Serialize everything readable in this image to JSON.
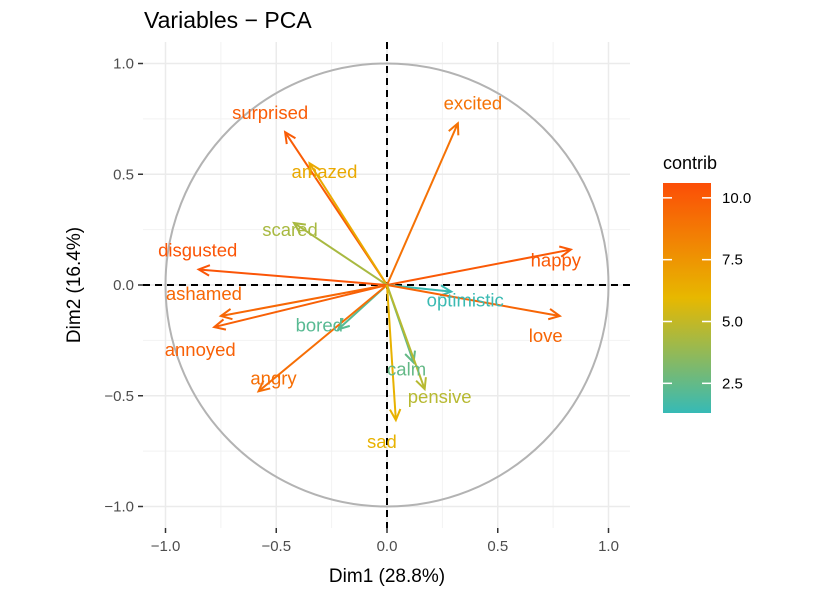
{
  "chart_data": {
    "type": "scatter",
    "title": "Variables − PCA",
    "xlabel": "Dim1 (28.8%)",
    "ylabel": "Dim2 (16.4%)",
    "xlim": [
      -1.1,
      1.1
    ],
    "ylim": [
      -1.1,
      1.1
    ],
    "xticks": [
      -1.0,
      -0.5,
      0.0,
      0.5,
      1.0
    ],
    "yticks": [
      -1.0,
      -0.5,
      0.0,
      0.5,
      1.0
    ],
    "xtick_labels": [
      "−1.0",
      "−0.5",
      "0.0",
      "0.5",
      "1.0"
    ],
    "ytick_labels": [
      "−1.0",
      "−0.5",
      "0.0",
      "0.5",
      "1.0"
    ],
    "grid": true,
    "unit_circle": true,
    "legend": {
      "title": "contrib",
      "position": "right",
      "range": [
        1.3,
        10.6
      ],
      "ticks": [
        2.5,
        5.0,
        7.5,
        10.0
      ],
      "tick_labels": [
        "2.5",
        "5.0",
        "7.5",
        "10.0"
      ],
      "colors": [
        "#36BAB6",
        "#E7B800",
        "#FC4E07"
      ]
    },
    "variables": [
      {
        "name": "excited",
        "x": 0.32,
        "y": 0.73,
        "contrib": 9.0
      },
      {
        "name": "surprised",
        "x": -0.46,
        "y": 0.69,
        "contrib": 10.0
      },
      {
        "name": "amazed",
        "x": -0.35,
        "y": 0.55,
        "contrib": 6.6
      },
      {
        "name": "scared",
        "x": -0.42,
        "y": 0.28,
        "contrib": 4.3
      },
      {
        "name": "disgusted",
        "x": -0.85,
        "y": 0.07,
        "contrib": 10.3
      },
      {
        "name": "happy",
        "x": 0.83,
        "y": 0.16,
        "contrib": 10.1
      },
      {
        "name": "ashamed",
        "x": -0.75,
        "y": -0.14,
        "contrib": 9.5
      },
      {
        "name": "annoyed",
        "x": -0.78,
        "y": -0.19,
        "contrib": 9.8
      },
      {
        "name": "optimistic",
        "x": 0.29,
        "y": -0.03,
        "contrib": 1.4
      },
      {
        "name": "love",
        "x": 0.78,
        "y": -0.14,
        "contrib": 9.6
      },
      {
        "name": "bored",
        "x": -0.22,
        "y": -0.2,
        "contrib": 2.2
      },
      {
        "name": "calm",
        "x": 0.12,
        "y": -0.35,
        "contrib": 2.5
      },
      {
        "name": "angry",
        "x": -0.58,
        "y": -0.48,
        "contrib": 9.2
      },
      {
        "name": "pensive",
        "x": 0.17,
        "y": -0.47,
        "contrib": 4.7
      },
      {
        "name": "sad",
        "x": 0.04,
        "y": -0.61,
        "contrib": 6.2
      }
    ]
  }
}
